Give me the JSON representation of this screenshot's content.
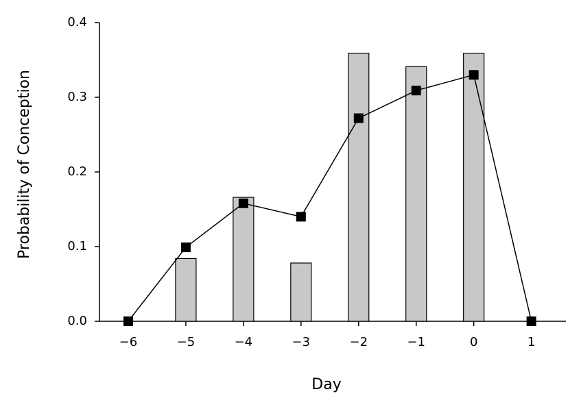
{
  "chart_data": {
    "type": "bar",
    "x": [
      -6,
      -5,
      -4,
      -3,
      -2,
      -1,
      0,
      1
    ],
    "series": [
      {
        "type": "bar",
        "color": "#c8c8c8",
        "values": [
          null,
          0.084,
          0.166,
          0.078,
          0.359,
          0.341,
          0.359,
          null
        ]
      },
      {
        "type": "line",
        "color": "#000000",
        "values": [
          0,
          0.099,
          0.158,
          0.14,
          0.272,
          0.309,
          0.33,
          0
        ]
      }
    ],
    "xlabel": "Day",
    "ylabel": "Probability of Conception",
    "xlim": [
      -6.5,
      1.6
    ],
    "xticks": [
      {
        "value": -6,
        "label": "−6"
      },
      {
        "value": -5,
        "label": "−5"
      },
      {
        "value": -4,
        "label": "−4"
      },
      {
        "value": -3,
        "label": "−3"
      },
      {
        "value": -2,
        "label": "−2"
      },
      {
        "value": -1,
        "label": "−1"
      },
      0,
      1
    ],
    "ylim": [
      0,
      0.4
    ],
    "yticks": [
      {
        "value": 0,
        "label": "0.0"
      },
      0.1,
      0.2,
      0.3,
      0.4
    ],
    "grid": false
  }
}
